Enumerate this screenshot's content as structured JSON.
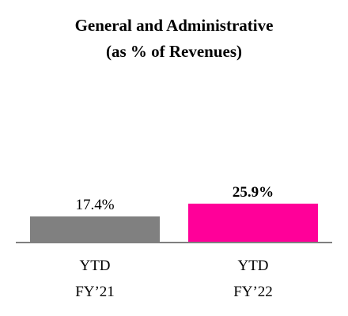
{
  "chart_data": {
    "type": "bar",
    "title_lines": [
      "General and Administrative",
      "(as % of Revenues)"
    ],
    "categories": [
      {
        "line1": "YTD",
        "line2": "FY’21"
      },
      {
        "line1": "YTD",
        "line2": "FY’22"
      }
    ],
    "values": [
      17.4,
      25.9
    ],
    "value_labels": [
      "17.4%",
      "25.9%"
    ],
    "value_label_bold": [
      false,
      true
    ],
    "colors": [
      "#808080",
      "#ff0099"
    ],
    "axis_color": "#7f7f7f",
    "ylim": [
      0,
      100
    ],
    "grid": false
  }
}
